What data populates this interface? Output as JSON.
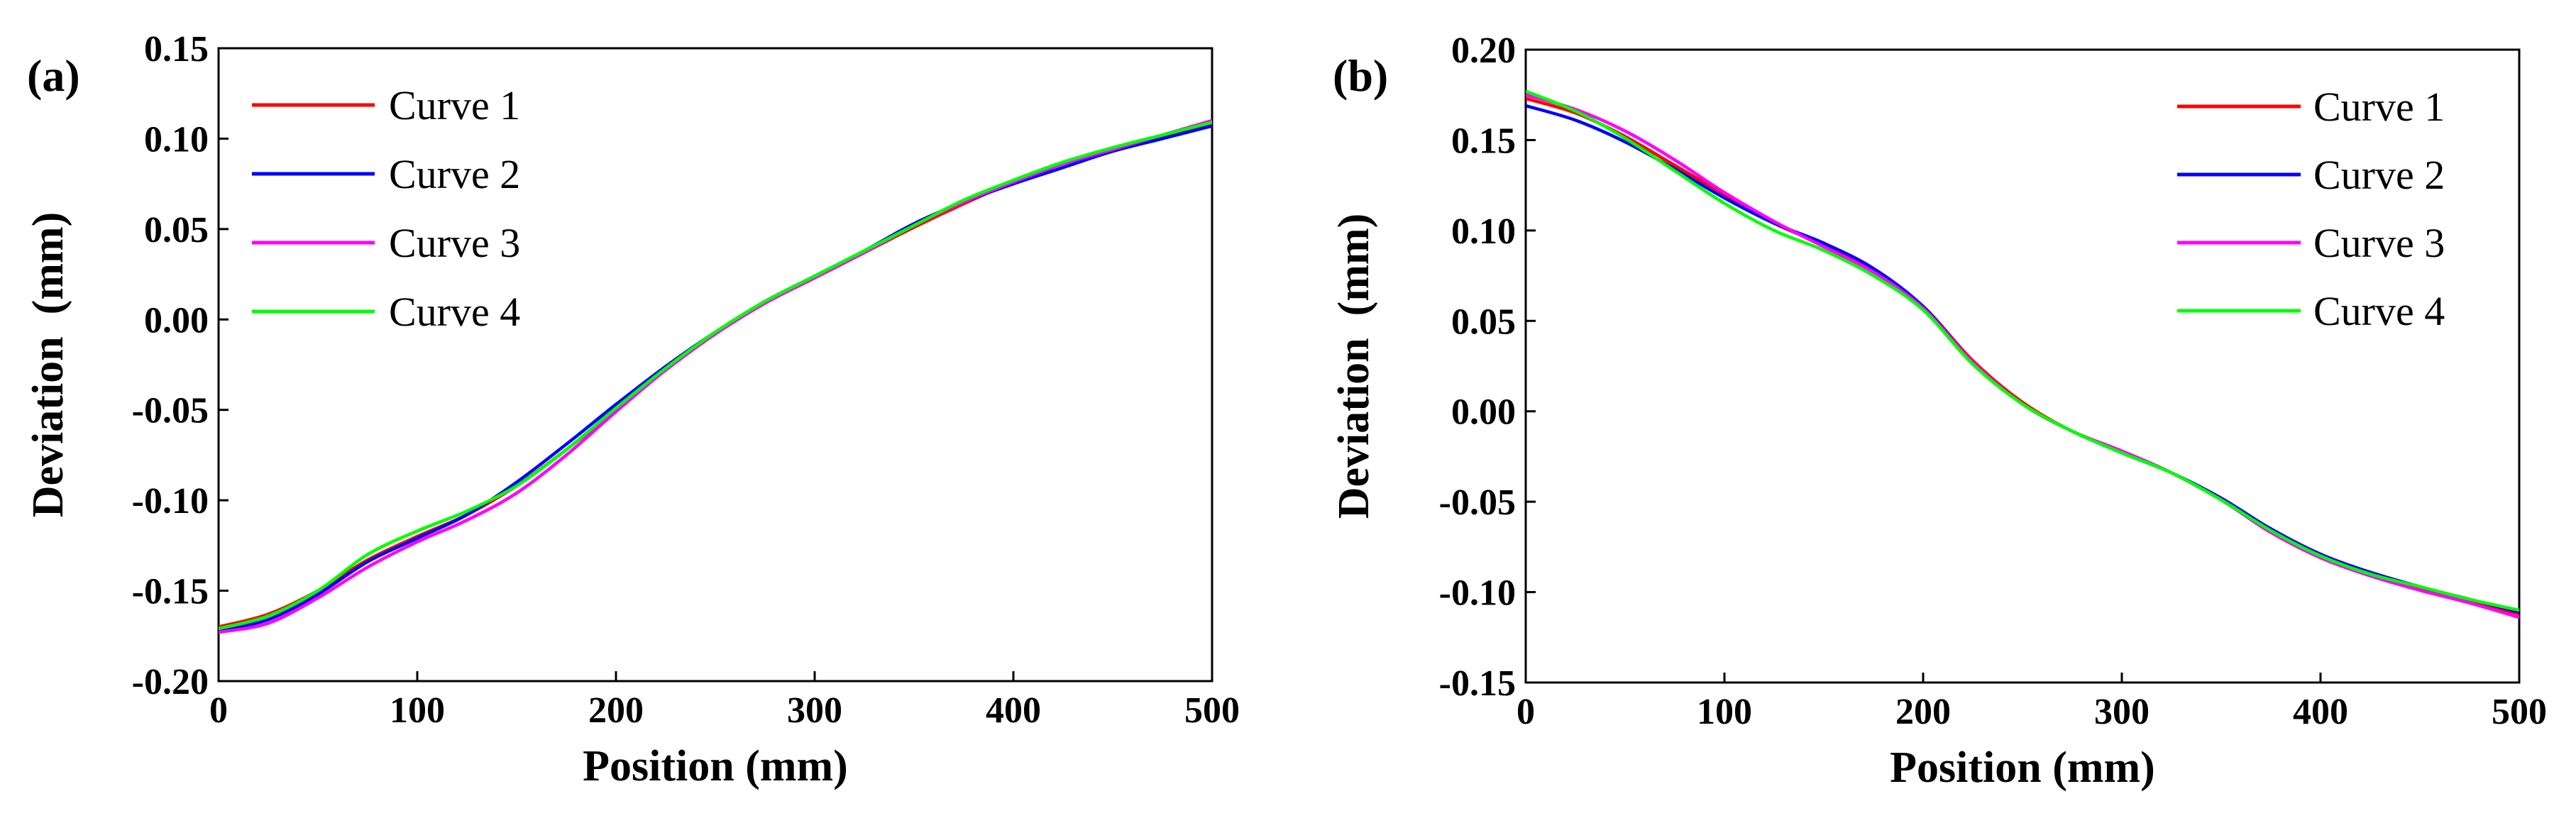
{
  "chart_data": [
    {
      "type": "line",
      "panel_label": "(a)",
      "xlabel": "Position (mm)",
      "ylabel": "Deviation  (mm)",
      "xlim": [
        0,
        500
      ],
      "ylim": [
        -0.2,
        0.15
      ],
      "xticks": [
        0,
        100,
        200,
        300,
        400,
        500
      ],
      "xtick_labels": [
        "0",
        "100",
        "200",
        "300",
        "400",
        "500"
      ],
      "yticks": [
        -0.2,
        -0.15,
        -0.1,
        -0.05,
        0.0,
        0.05,
        0.1,
        0.15
      ],
      "ytick_labels": [
        "-0.20",
        "-0.15",
        "-0.10",
        "-0.05",
        "0.00",
        "0.05",
        "0.10",
        "0.15"
      ],
      "legend_position": "top-left",
      "x": [
        0,
        25,
        50,
        75,
        100,
        125,
        150,
        175,
        200,
        225,
        250,
        275,
        300,
        325,
        350,
        375,
        400,
        425,
        450,
        475,
        500
      ],
      "series": [
        {
          "name": "Curve 1",
          "color": "#ff0000",
          "values": [
            -0.17,
            -0.163,
            -0.15,
            -0.133,
            -0.12,
            -0.108,
            -0.092,
            -0.072,
            -0.05,
            -0.028,
            -0.008,
            0.009,
            0.023,
            0.037,
            0.051,
            0.064,
            0.076,
            0.086,
            0.094,
            0.101,
            0.108
          ]
        },
        {
          "name": "Curve 2",
          "color": "#0000ff",
          "values": [
            -0.172,
            -0.166,
            -0.152,
            -0.134,
            -0.121,
            -0.108,
            -0.09,
            -0.069,
            -0.047,
            -0.026,
            -0.007,
            0.01,
            0.024,
            0.038,
            0.053,
            0.065,
            0.075,
            0.084,
            0.093,
            0.1,
            0.107
          ]
        },
        {
          "name": "Curve 3",
          "color": "#ff00ff",
          "values": [
            -0.173,
            -0.168,
            -0.154,
            -0.137,
            -0.123,
            -0.111,
            -0.096,
            -0.075,
            -0.051,
            -0.028,
            -0.008,
            0.009,
            0.023,
            0.037,
            0.052,
            0.065,
            0.076,
            0.086,
            0.094,
            0.102,
            0.11
          ]
        },
        {
          "name": "Curve 4",
          "color": "#00ff00",
          "values": [
            -0.171,
            -0.164,
            -0.15,
            -0.13,
            -0.117,
            -0.106,
            -0.092,
            -0.072,
            -0.049,
            -0.027,
            -0.007,
            0.01,
            0.024,
            0.038,
            0.052,
            0.066,
            0.077,
            0.087,
            0.095,
            0.102,
            0.109
          ]
        }
      ]
    },
    {
      "type": "line",
      "panel_label": "(b)",
      "xlabel": "Position (mm)",
      "ylabel": "Deviation  (mm)",
      "xlim": [
        0,
        500
      ],
      "ylim": [
        -0.15,
        0.2
      ],
      "xticks": [
        0,
        100,
        200,
        300,
        400,
        500
      ],
      "xtick_labels": [
        "0",
        "100",
        "200",
        "300",
        "400",
        "500"
      ],
      "yticks": [
        -0.15,
        -0.1,
        -0.05,
        0.0,
        0.05,
        0.1,
        0.15,
        0.2
      ],
      "ytick_labels": [
        "-0.15",
        "-0.10",
        "-0.05",
        "0.00",
        "0.05",
        "0.10",
        "0.15",
        "0.20"
      ],
      "legend_position": "top-right",
      "x": [
        0,
        25,
        50,
        75,
        100,
        125,
        150,
        175,
        200,
        225,
        250,
        275,
        300,
        325,
        350,
        375,
        400,
        425,
        450,
        475,
        500
      ],
      "series": [
        {
          "name": "Curve 1",
          "color": "#ff0000",
          "values": [
            0.173,
            0.165,
            0.152,
            0.136,
            0.12,
            0.104,
            0.092,
            0.078,
            0.058,
            0.028,
            0.005,
            -0.011,
            -0.022,
            -0.034,
            -0.049,
            -0.066,
            -0.08,
            -0.09,
            -0.098,
            -0.105,
            -0.112
          ]
        },
        {
          "name": "Curve 2",
          "color": "#0000ff",
          "values": [
            0.169,
            0.161,
            0.149,
            0.134,
            0.118,
            0.104,
            0.093,
            0.079,
            0.058,
            0.027,
            0.004,
            -0.011,
            -0.023,
            -0.034,
            -0.048,
            -0.065,
            -0.079,
            -0.089,
            -0.097,
            -0.104,
            -0.111
          ]
        },
        {
          "name": "Curve 3",
          "color": "#ff00ff",
          "values": [
            0.175,
            0.167,
            0.155,
            0.139,
            0.121,
            0.105,
            0.091,
            0.077,
            0.057,
            0.027,
            0.004,
            -0.011,
            -0.022,
            -0.034,
            -0.049,
            -0.067,
            -0.081,
            -0.091,
            -0.099,
            -0.106,
            -0.114
          ]
        },
        {
          "name": "Curve 4",
          "color": "#00ff00",
          "values": [
            0.177,
            0.166,
            0.151,
            0.133,
            0.115,
            0.1,
            0.089,
            0.075,
            0.056,
            0.026,
            0.004,
            -0.011,
            -0.023,
            -0.034,
            -0.049,
            -0.066,
            -0.08,
            -0.09,
            -0.097,
            -0.104,
            -0.11
          ]
        }
      ]
    }
  ]
}
